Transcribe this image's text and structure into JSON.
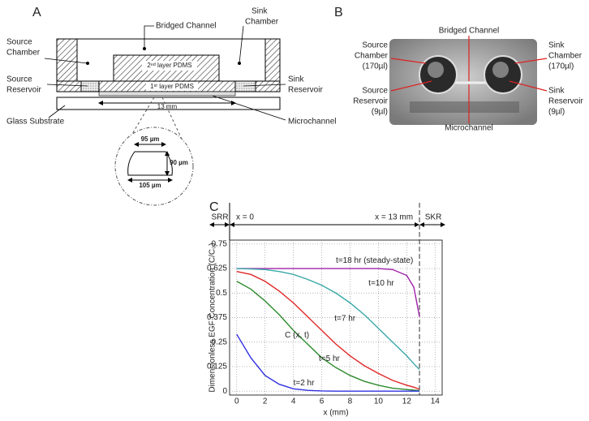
{
  "panel_a": {
    "letter": "A",
    "bridged_channel": "Bridged Channel",
    "sink_chamber": [
      "Sink",
      "Chamber"
    ],
    "source_chamber": [
      "Source",
      "Chamber"
    ],
    "source_reservoir": [
      "Source",
      "Reservoir"
    ],
    "sink_reservoir": [
      "Sink",
      "Reservoir"
    ],
    "layer2": "2ⁿᵈ layer PDMS",
    "layer1": "1ˢᵗ layer PDMS",
    "length": "13 mm",
    "glass_substrate": "Glass Substrate",
    "microchannel": "Microchannel",
    "top_width": "95 µm",
    "height": "90 µm",
    "bottom_width": "105 µm"
  },
  "panel_b": {
    "letter": "B",
    "bridged_channel": "Bridged Channel",
    "source_chamber": [
      "Source",
      "Chamber",
      "(170µl)"
    ],
    "source_reservoir": [
      "Source",
      "Reservoir",
      "(9µl)"
    ],
    "sink_chamber": [
      "Sink",
      "Chamber",
      "(170µl)"
    ],
    "sink_reservoir": [
      "Sink",
      "Reservoir",
      "(9µl)"
    ],
    "microchannel": "Microchannel"
  },
  "chart_data": {
    "type": "line",
    "letter": "C",
    "xlabel": "x (mm)",
    "ylabel": "Dimensionless EGF Concentration (C/C₀)",
    "top_labels": [
      "SRR",
      "x = 0",
      "x = 13 mm",
      "SKR"
    ],
    "annotations": [
      "C (x, t)"
    ],
    "x": [
      0,
      1,
      2,
      3,
      4,
      5,
      6,
      7,
      8,
      9,
      10,
      11,
      12,
      12.5,
      12.9
    ],
    "series": [
      {
        "name": "t=18 hr (steady-state)",
        "color": "#a020a8",
        "values": [
          0.625,
          0.625,
          0.625,
          0.625,
          0.625,
          0.625,
          0.625,
          0.625,
          0.625,
          0.625,
          0.625,
          0.62,
          0.59,
          0.53,
          0.38
        ]
      },
      {
        "name": "t=10 hr",
        "color": "#3aa8a8",
        "values": [
          0.625,
          0.623,
          0.62,
          0.61,
          0.595,
          0.57,
          0.54,
          0.5,
          0.45,
          0.39,
          0.32,
          0.25,
          0.18,
          0.14,
          0.11
        ]
      },
      {
        "name": "t=7 hr",
        "color": "#e02828",
        "values": [
          0.61,
          0.595,
          0.56,
          0.51,
          0.45,
          0.38,
          0.31,
          0.24,
          0.18,
          0.13,
          0.09,
          0.055,
          0.03,
          0.02,
          0.01
        ]
      },
      {
        "name": "t=5 hr",
        "color": "#2e8b2e",
        "values": [
          0.56,
          0.52,
          0.46,
          0.39,
          0.31,
          0.24,
          0.17,
          0.12,
          0.08,
          0.05,
          0.03,
          0.015,
          0.008,
          0.005,
          0.003
        ]
      },
      {
        "name": "t=2 hr",
        "color": "#3030e0",
        "values": [
          0.29,
          0.17,
          0.08,
          0.035,
          0.012,
          0.004,
          0.001,
          0,
          0,
          0,
          0,
          0,
          0,
          0,
          0
        ]
      }
    ],
    "xlim": [
      -0.5,
      14.5
    ],
    "ylim": [
      -0.02,
      0.77
    ],
    "xticks": [
      0,
      2,
      4,
      6,
      8,
      10,
      12,
      14
    ],
    "yticks": [
      0,
      0.125,
      0.25,
      0.375,
      0.5,
      0.625,
      0.75
    ],
    "grid": true
  }
}
